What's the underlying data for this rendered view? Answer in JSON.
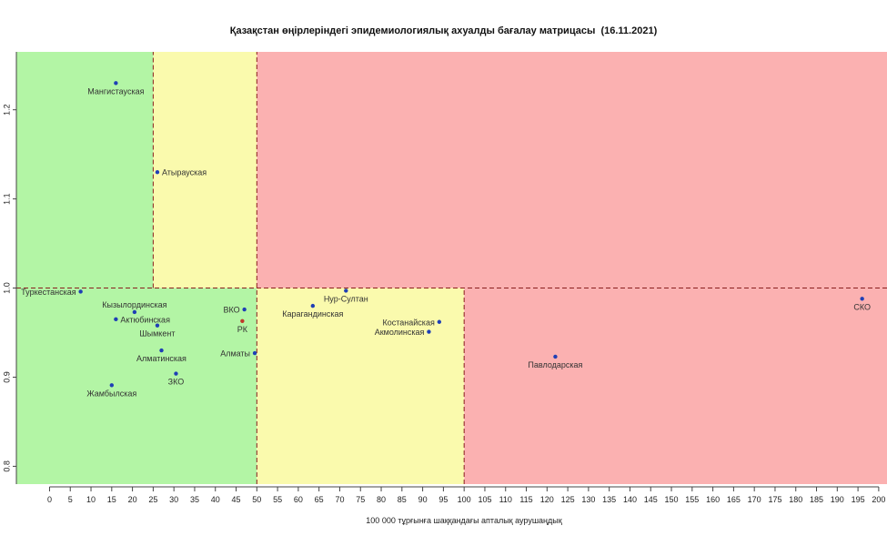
{
  "chart_data": {
    "type": "scatter",
    "title": "Қазақстан өңірлеріндегі эпидемиологиялық ахуалды бағалау матрицасы  (16.11.2021)",
    "xlabel": "100 000 тұрғынға шаққандағы апталық аурушаңдық",
    "ylabel": "",
    "xlim": [
      -8,
      202
    ],
    "ylim": [
      0.78,
      1.265
    ],
    "x_ticks": [
      0,
      5,
      10,
      15,
      20,
      25,
      30,
      35,
      40,
      45,
      50,
      55,
      60,
      65,
      70,
      75,
      80,
      85,
      90,
      95,
      100,
      105,
      110,
      115,
      120,
      125,
      130,
      135,
      140,
      145,
      150,
      155,
      160,
      165,
      170,
      175,
      180,
      185,
      190,
      195,
      200
    ],
    "y_ticks": [
      "0.8",
      "0.9",
      "1.0",
      "1.1",
      "1.2"
    ],
    "zones": [
      {
        "x0": -8,
        "x1": 25,
        "y0": 1.0,
        "y1": 1.265,
        "color": "#b3f5a5"
      },
      {
        "x0": 25,
        "x1": 50,
        "y0": 1.0,
        "y1": 1.265,
        "color": "#fafaad"
      },
      {
        "x0": 50,
        "x1": 202,
        "y0": 1.0,
        "y1": 1.265,
        "color": "#fbb1b1"
      },
      {
        "x0": -8,
        "x1": 50,
        "y0": 0.78,
        "y1": 1.0,
        "color": "#b3f5a5"
      },
      {
        "x0": 50,
        "x1": 100,
        "y0": 0.78,
        "y1": 1.0,
        "color": "#fafaad"
      },
      {
        "x0": 100,
        "x1": 202,
        "y0": 0.78,
        "y1": 1.0,
        "color": "#fbb1b1"
      }
    ],
    "dashed_lines": [
      {
        "orient": "v",
        "value": 25,
        "from": 1.0,
        "to": 1.265
      },
      {
        "orient": "v",
        "value": 50,
        "from": 0.78,
        "to": 1.265
      },
      {
        "orient": "v",
        "value": 100,
        "from": 0.78,
        "to": 1.0
      },
      {
        "orient": "h",
        "value": 1.0,
        "from": -8,
        "to": 202
      }
    ],
    "points": [
      {
        "label": "Мангистауская",
        "x": 16,
        "y": 1.23,
        "anchor": "below"
      },
      {
        "label": "Атырауская",
        "x": 26,
        "y": 1.13,
        "anchor": "right"
      },
      {
        "label": "Туркестанская",
        "x": 7.5,
        "y": 0.996,
        "anchor": "left"
      },
      {
        "label": "Кызылординская",
        "x": 20.5,
        "y": 0.973,
        "anchor": "above"
      },
      {
        "label": "Актюбинская",
        "x": 16,
        "y": 0.965,
        "anchor": "right"
      },
      {
        "label": "Шымкент",
        "x": 26,
        "y": 0.958,
        "anchor": "below"
      },
      {
        "label": "Алматинская",
        "x": 27,
        "y": 0.93,
        "anchor": "below"
      },
      {
        "label": "ЗКО",
        "x": 30.5,
        "y": 0.904,
        "anchor": "below"
      },
      {
        "label": "Жамбылская",
        "x": 15,
        "y": 0.891,
        "anchor": "below"
      },
      {
        "label": "ВКО",
        "x": 47,
        "y": 0.976,
        "anchor": "left"
      },
      {
        "label": "РК",
        "x": 46.5,
        "y": 0.963,
        "anchor": "below",
        "color": "#c0392b"
      },
      {
        "label": "Алматы",
        "x": 49.5,
        "y": 0.927,
        "anchor": "left"
      },
      {
        "label": "Нур-Султан",
        "x": 71.5,
        "y": 0.997,
        "anchor": "below"
      },
      {
        "label": "Карагандинская",
        "x": 63.5,
        "y": 0.98,
        "anchor": "below"
      },
      {
        "label": "Костанайская",
        "x": 94,
        "y": 0.962,
        "anchor": "left"
      },
      {
        "label": "Акмолинская",
        "x": 91.5,
        "y": 0.951,
        "anchor": "left"
      },
      {
        "label": "Павлодарская",
        "x": 122,
        "y": 0.923,
        "anchor": "below"
      },
      {
        "label": "СКО",
        "x": 196,
        "y": 0.988,
        "anchor": "below"
      }
    ],
    "grid": false,
    "legend": "none",
    "point_color": "#1f3fb5",
    "label_color": "#333333"
  }
}
